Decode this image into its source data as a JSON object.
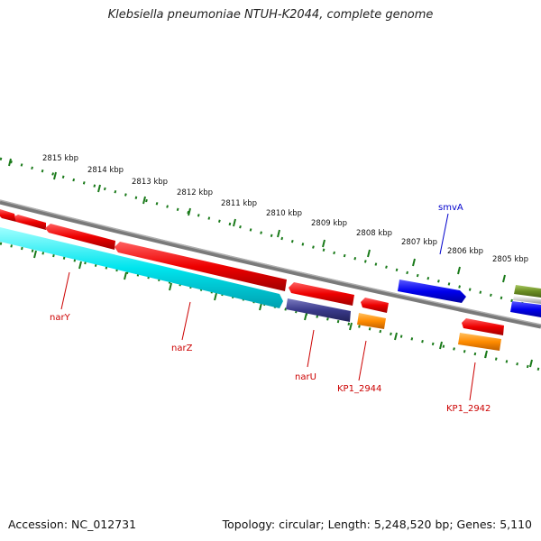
{
  "title": "Klebsiella pneumoniae NTUH-K2044, complete genome",
  "footer": {
    "accession": "Accession: NC_012731",
    "topology": "Topology: circular; Length: 5,248,520 bp; Genes: 5,110"
  },
  "ruler_labels": [
    {
      "text": "2815 kbp"
    },
    {
      "text": "2814 kbp"
    },
    {
      "text": "2813 kbp"
    },
    {
      "text": "2812 kbp"
    },
    {
      "text": "2811 kbp"
    },
    {
      "text": "2810 kbp"
    },
    {
      "text": "2809 kbp"
    },
    {
      "text": "2808 kbp"
    },
    {
      "text": "2807 kbp"
    },
    {
      "text": "2806 kbp"
    },
    {
      "text": "2805 kbp"
    }
  ],
  "gene_labels": [
    {
      "text": "narY",
      "color": "#cc0000"
    },
    {
      "text": "narZ",
      "color": "#cc0000"
    },
    {
      "text": "narU",
      "color": "#cc0000"
    },
    {
      "text": "KP1_2944",
      "color": "#cc0000"
    },
    {
      "text": "KP1_2942",
      "color": "#cc0000"
    },
    {
      "text": "smvA",
      "color": "#0000cc"
    }
  ],
  "colors": {
    "backbone": "#7a7a7a",
    "ticks": "#1a7a1a",
    "gene_red": "#ee0000",
    "gene_cyan": "#00e5ee",
    "gene_navy": "#3a3a8a",
    "gene_orange": "#ff8c00",
    "gene_blue": "#0000ee",
    "gene_olive": "#6b8e23"
  }
}
